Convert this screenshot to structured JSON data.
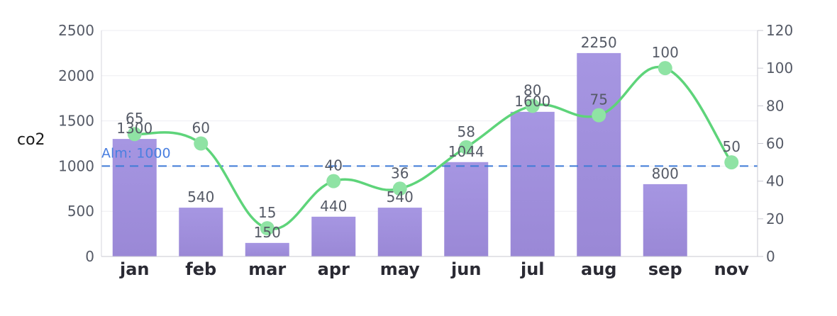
{
  "chart_data": {
    "type": "bar",
    "categories": [
      "jan",
      "feb",
      "mar",
      "apr",
      "may",
      "jun",
      "jul",
      "aug",
      "sep",
      "nov"
    ],
    "series": [
      {
        "type": "bar",
        "axis": "left",
        "values": [
          1300,
          540,
          150,
          440,
          540,
          1044,
          1600,
          2250,
          800,
          null
        ],
        "labels": [
          "1300",
          "540",
          "150",
          "440",
          "540",
          "1044",
          "1600",
          "2250",
          "800",
          ""
        ],
        "color": "#9f8fdc"
      },
      {
        "type": "line",
        "axis": "right",
        "smooth": true,
        "values": [
          65,
          60,
          15,
          40,
          36,
          58,
          80,
          75,
          100,
          50
        ],
        "labels": [
          "65",
          "60",
          "15",
          "40",
          "36",
          "58",
          "80",
          "75",
          "100",
          "50"
        ],
        "color": "#5ed47a"
      }
    ],
    "ylabel": "co2",
    "ylim_left": [
      0,
      2500
    ],
    "yticks_left": [
      "0",
      "500",
      "1000",
      "1500",
      "2000",
      "2500"
    ],
    "ylim_right": [
      0,
      120
    ],
    "yticks_right": [
      "0",
      "20",
      "40",
      "60",
      "80",
      "100",
      "120"
    ],
    "reference_line": {
      "axis": "left",
      "value": 1000,
      "label": "Alm: 1000",
      "color": "#3f7bd6",
      "style": "dashed"
    },
    "grid": true,
    "legend": "none"
  }
}
